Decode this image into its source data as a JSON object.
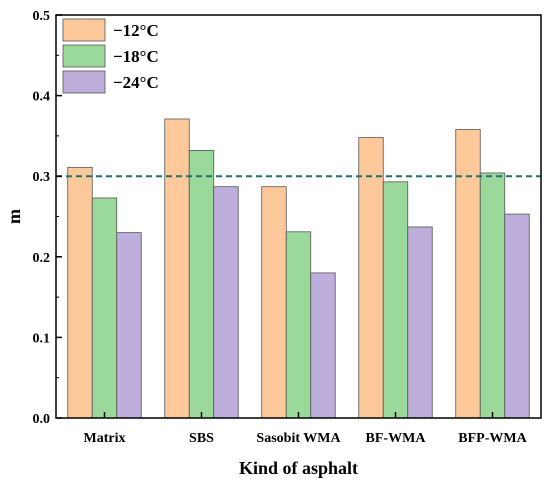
{
  "chart_data": {
    "type": "bar",
    "title": "",
    "xlabel": "Kind of asphalt",
    "ylabel": "m",
    "categories": [
      "Matrix",
      "SBS",
      "Sasobit WMA",
      "BF-WMA",
      "BFP-WMA"
    ],
    "series": [
      {
        "name": "−12°C",
        "values": [
          0.311,
          0.371,
          0.287,
          0.348,
          0.358
        ],
        "color": "#fdc89a"
      },
      {
        "name": "−18°C",
        "values": [
          0.273,
          0.332,
          0.231,
          0.293,
          0.304
        ],
        "color": "#9bd99b"
      },
      {
        "name": "−24°C",
        "values": [
          0.23,
          0.287,
          0.18,
          0.237,
          0.253
        ],
        "color": "#bdaedb"
      }
    ],
    "ylim": [
      0,
      0.5
    ],
    "yticks": [
      "0.0",
      "0.1",
      "0.2",
      "0.3",
      "0.4",
      "0.5"
    ],
    "reference_line": {
      "value": 0.3,
      "color": "#1f6f6f",
      "style": "dashed"
    },
    "legend": "top-left",
    "grid": false
  }
}
